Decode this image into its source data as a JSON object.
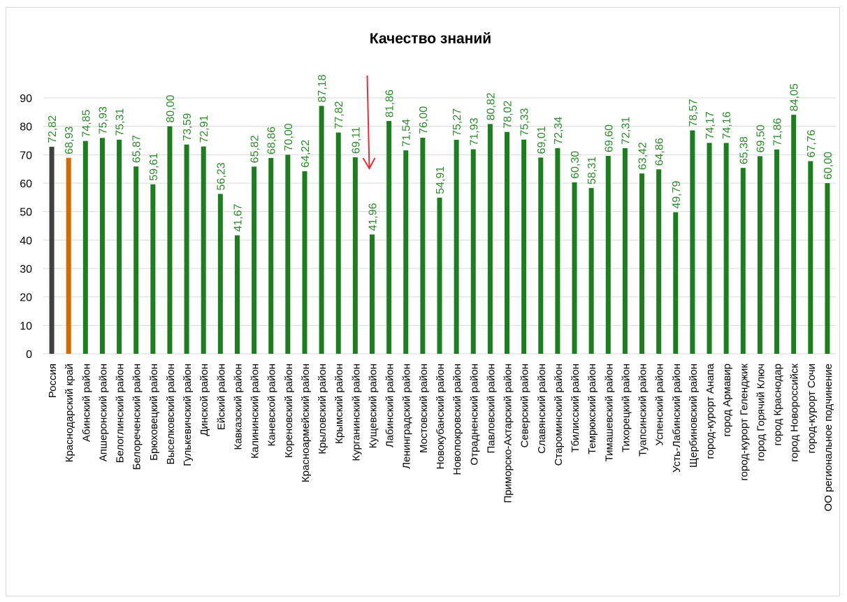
{
  "chart_data": {
    "type": "bar",
    "title": "Качество знаний",
    "xlabel": "",
    "ylabel": "",
    "ylim": [
      0,
      90
    ],
    "yticks": [
      0,
      10,
      20,
      30,
      40,
      50,
      60,
      70,
      80,
      90
    ],
    "grid": true,
    "legend": "none",
    "colors": {
      "default": "#1e7d1e",
      "highlight_1": "#404040",
      "highlight_2": "#d46a00",
      "label": "#2e8b2e",
      "grid": "#d9d9d9",
      "arrow": "#e0303a"
    },
    "categories": [
      "Россия",
      "Краснодарский край",
      "Абинский район",
      "Апшеронский район",
      "Белоглинский район",
      "Белореченский район",
      "Брюховецкий район",
      "Выселковский район",
      "Гулькевичский район",
      "Динской район",
      "Ейский район",
      "Кавказский район",
      "Калининский район",
      "Каневской район",
      "Кореновский район",
      "Красноармейский район",
      "Крыловский район",
      "Крымский район",
      "Курганинский район",
      "Кущевский район",
      "Лабинский район",
      "Ленинградский район",
      "Мостовский район",
      "Новокубанский район",
      "Новопокровский район",
      "Отрадненский район",
      "Павловский район",
      "Приморско-Ахтарский район",
      "Северский район",
      "Славянский район",
      "Староминский район",
      "Тбилисский район",
      "Темрюкский район",
      "Тимашевский район",
      "Тихорецкий район",
      "Туапсинский район",
      "Успенский район",
      "Усть-Лабинский район",
      "Щербиновский район",
      "город-курорт Анапа",
      "город Армавир",
      "город-курорт Геленджик",
      "город Горячий Ключ",
      "город Краснодар",
      "город Новороссийск",
      "город-курорт Сочи",
      "ОО региональное подчинение"
    ],
    "values": [
      72.82,
      68.93,
      74.85,
      75.93,
      75.31,
      65.87,
      59.61,
      80.0,
      73.59,
      72.91,
      56.23,
      41.67,
      65.82,
      68.86,
      70.0,
      64.22,
      87.18,
      77.82,
      69.11,
      41.96,
      81.86,
      71.54,
      76.0,
      54.91,
      75.27,
      71.93,
      80.82,
      78.02,
      75.33,
      69.01,
      72.34,
      60.3,
      58.31,
      69.6,
      72.31,
      63.42,
      64.86,
      49.79,
      78.57,
      74.17,
      74.16,
      65.38,
      69.5,
      71.86,
      84.05,
      67.76,
      60.0
    ],
    "labels": [
      "72,82",
      "68,93",
      "74,85",
      "75,93",
      "75,31",
      "65,87",
      "59,61",
      "80,00",
      "73,59",
      "72,91",
      "56,23",
      "41,67",
      "65,82",
      "68,86",
      "70,00",
      "64,22",
      "87,18",
      "77,82",
      "69,11",
      "41,96",
      "81,86",
      "71,54",
      "76,00",
      "54,91",
      "75,27",
      "71,93",
      "80,82",
      "78,02",
      "75,33",
      "69,01",
      "72,34",
      "60,30",
      "58,31",
      "69,60",
      "72,31",
      "63,42",
      "64,86",
      "49,79",
      "78,57",
      "74,17",
      "74,16",
      "65,38",
      "69,50",
      "71,86",
      "84,05",
      "67,76",
      "60,00"
    ],
    "annotation": {
      "type": "arrow",
      "points_to": "Кущевский район",
      "direction": "down"
    }
  }
}
